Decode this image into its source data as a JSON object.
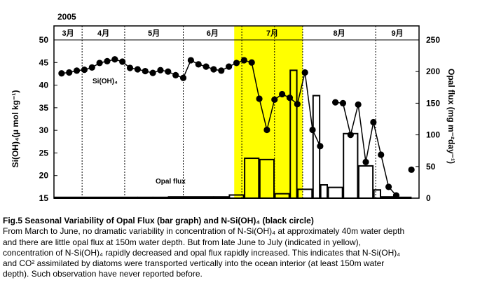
{
  "chart_data": {
    "type": "bar+line",
    "year_label": "2005",
    "months": [
      "3月",
      "4月",
      "5月",
      "6月",
      "7月",
      "8月",
      "9月"
    ],
    "highlight_label": "(indicated in yellow)",
    "highlight_color": "#ffff00",
    "y_left": {
      "label": "Si(OH)₄(μ mol kg⁻¹)",
      "range": [
        15,
        50
      ],
      "ticks": [
        15,
        20,
        25,
        30,
        35,
        40,
        45,
        50
      ]
    },
    "y_right": {
      "label": "Opal flux (mg m⁻²day⁻¹)",
      "range": [
        0,
        250
      ],
      "ticks": [
        0,
        50,
        100,
        150,
        200,
        250
      ]
    },
    "series": [
      {
        "name": "Si(OH)₄",
        "kind": "line-circle",
        "axis": "left",
        "points": [
          [
            1,
            42.6
          ],
          [
            2,
            42.8
          ],
          [
            3,
            43.2
          ],
          [
            4,
            43.4
          ],
          [
            5,
            43.9
          ],
          [
            6,
            44.9
          ],
          [
            7,
            45.3
          ],
          [
            8,
            45.7
          ],
          [
            9,
            45.2
          ],
          [
            10,
            43.8
          ],
          [
            11,
            43.5
          ],
          [
            12,
            43.1
          ],
          [
            13,
            42.7
          ],
          [
            14,
            43.3
          ],
          [
            15,
            43.0
          ],
          [
            16,
            42.2
          ],
          [
            17,
            41.6
          ],
          [
            18,
            45.5
          ],
          [
            19,
            44.6
          ],
          [
            20,
            44.1
          ],
          [
            21,
            43.5
          ],
          [
            22,
            43.2
          ],
          [
            23,
            44.1
          ],
          [
            24,
            44.9
          ],
          [
            25,
            45.5
          ],
          [
            26,
            45.0
          ],
          [
            27,
            37.0
          ],
          [
            28,
            30.1
          ],
          [
            29,
            36.8
          ],
          [
            30,
            38.0
          ],
          [
            31,
            37.2
          ],
          [
            32,
            35.8
          ],
          [
            33,
            42.8
          ],
          [
            34,
            30.1
          ],
          [
            35,
            26.5
          ],
          [
            37,
            36.2
          ],
          [
            38,
            36.0
          ],
          [
            39,
            29.0
          ],
          [
            40,
            35.7
          ],
          [
            41,
            23.0
          ],
          [
            42,
            31.8
          ],
          [
            43,
            24.6
          ],
          [
            44,
            17.5
          ],
          [
            45,
            15.6
          ],
          [
            47,
            21.3
          ]
        ]
      },
      {
        "name": "Opal flux",
        "kind": "bar",
        "axis": "right",
        "bars": [
          [
            0,
            11,
            0
          ],
          [
            11,
            13,
            0.5
          ],
          [
            13,
            15,
            0.5
          ],
          [
            15,
            17,
            2
          ],
          [
            17,
            21,
            2
          ],
          [
            21,
            23,
            2
          ],
          [
            23,
            25,
            5
          ],
          [
            25,
            27,
            63
          ],
          [
            27,
            29,
            61
          ],
          [
            29,
            31,
            7
          ],
          [
            31,
            32,
            202
          ],
          [
            32,
            34,
            14
          ],
          [
            34,
            35,
            162
          ],
          [
            35,
            36,
            21
          ],
          [
            36,
            38,
            17
          ],
          [
            38,
            40,
            102
          ],
          [
            40,
            42,
            51
          ],
          [
            42,
            43,
            13
          ],
          [
            43,
            45,
            2
          ],
          [
            45,
            47,
            1
          ]
        ]
      }
    ],
    "labels": {
      "si_label": "Si(OH)₄",
      "opal_label": "Opal flux"
    }
  },
  "caption": {
    "title": "Fig.5    Seasonal Variability of Opal Flux (bar graph) and N-Si(OH)₄ (black circle)",
    "lines": [
      "From March to June, no dramatic variability in concentration of N-Si(OH)₄ at approximately 40m water depth",
      "and there are little opal flux at 150m water depth. But from late June to July (indicated in yellow),",
      "concentration of N-Si(OH)₄ rapidly decreased and opal flux rapidly increased.  This indicates that N-Si(OH)₄",
      "and CO²  assimilated by diatoms were transported vertically into the ocean interior (at least 150m water",
      "depth). Such observation have never reported before."
    ]
  }
}
